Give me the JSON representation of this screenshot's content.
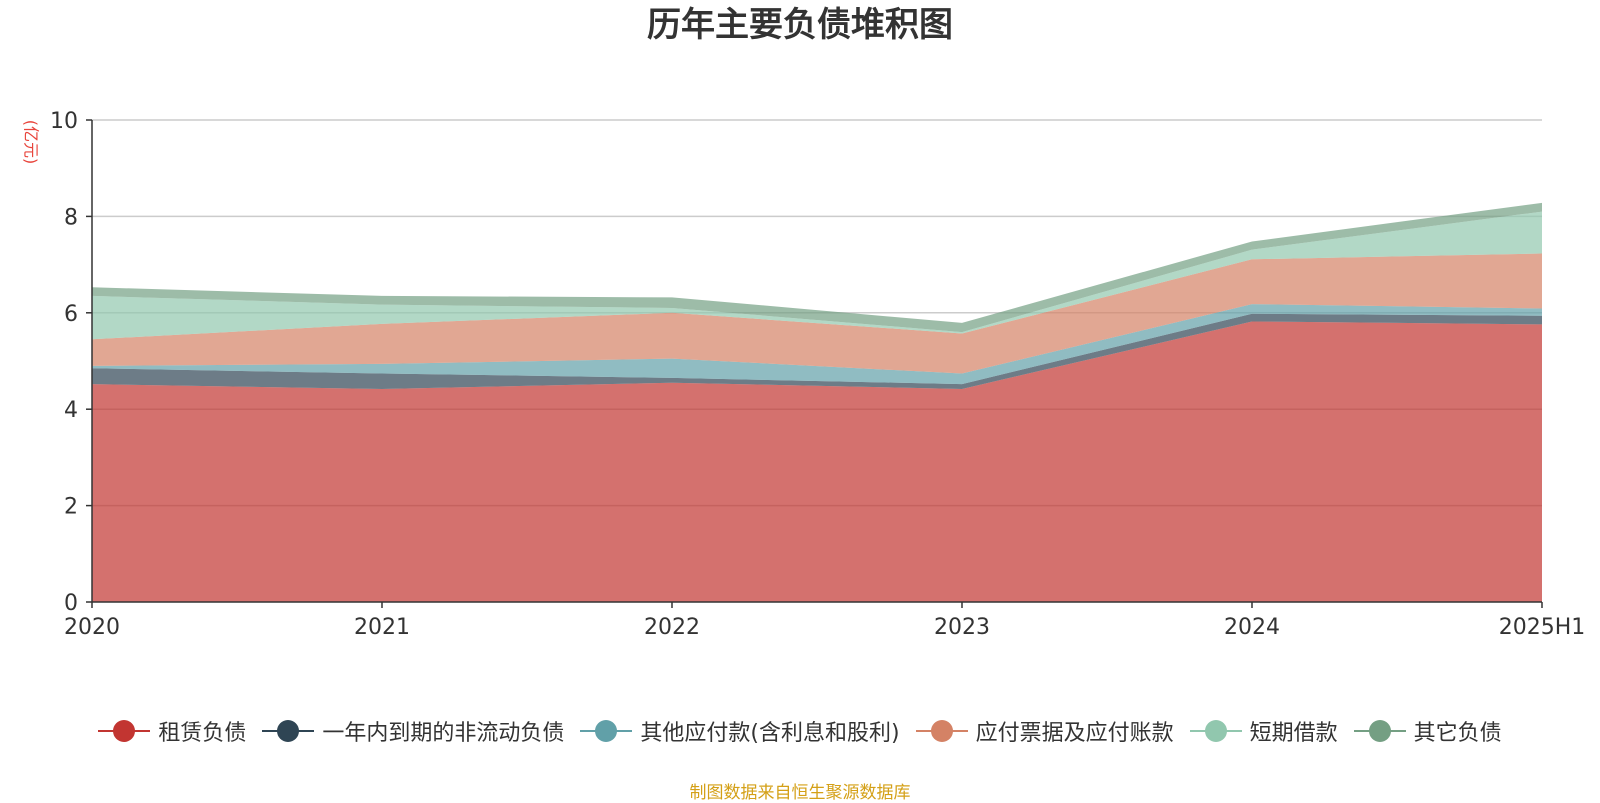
{
  "title": "历年主要负债堆积图",
  "unit_label": "(亿元)",
  "source": "制图数据来自恒生聚源数据库",
  "chart_data": {
    "type": "area",
    "stacked": true,
    "title": "历年主要负债堆积图",
    "ylabel": "(亿元)",
    "xlabel": "",
    "ylim": [
      0,
      10
    ],
    "yticks": [
      "0",
      "2",
      "4",
      "6",
      "8",
      "10"
    ],
    "categories": [
      "2020",
      "2021",
      "2022",
      "2023",
      "2024",
      "2025H1"
    ],
    "grid": true,
    "legend_position": "bottom",
    "series": [
      {
        "name": "租赁负债",
        "color": "#c23531",
        "values": [
          4.52,
          4.42,
          4.55,
          4.42,
          5.82,
          5.76
        ]
      },
      {
        "name": "一年内到期的非流动负债",
        "color": "#2f4554",
        "values": [
          0.33,
          0.32,
          0.1,
          0.1,
          0.16,
          0.18
        ]
      },
      {
        "name": "其他应付款(含利息和股利)",
        "color": "#61a0a8",
        "values": [
          0.05,
          0.2,
          0.4,
          0.22,
          0.2,
          0.15
        ]
      },
      {
        "name": "应付票据及应付账款",
        "color": "#d48265",
        "values": [
          0.55,
          0.83,
          0.95,
          0.83,
          0.93,
          1.14
        ]
      },
      {
        "name": "短期借款",
        "color": "#91c7ae",
        "values": [
          0.9,
          0.4,
          0.1,
          0.03,
          0.2,
          0.87
        ]
      },
      {
        "name": "其它负债",
        "color": "#749f83",
        "values": [
          0.18,
          0.18,
          0.22,
          0.19,
          0.17,
          0.18
        ]
      }
    ]
  }
}
